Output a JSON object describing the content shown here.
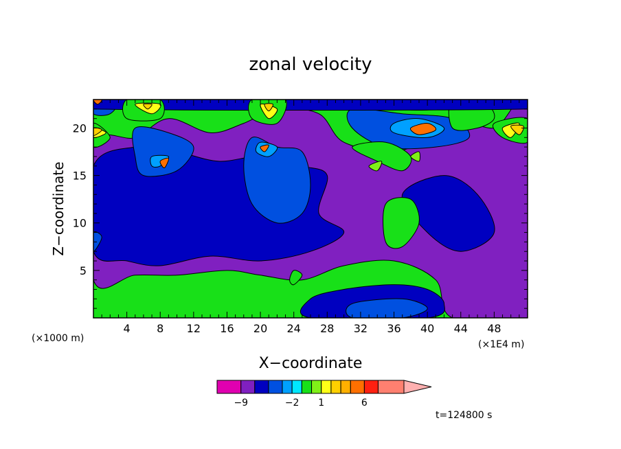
{
  "chart_data": {
    "type": "heatmap",
    "title": "zonal velocity",
    "xlabel": "X−coordinate",
    "ylabel": "Z−coordinate",
    "x_unit_left": "(×1000 m)",
    "x_unit_right": "(×1E4 m)",
    "xlim": [
      0,
      52
    ],
    "ylim": [
      0,
      23
    ],
    "x_ticks": [
      4,
      8,
      12,
      16,
      20,
      24,
      28,
      32,
      36,
      40,
      44,
      48
    ],
    "y_ticks": [
      5,
      10,
      15,
      20
    ],
    "time_label": "t=124800 s",
    "colorbar": {
      "tick_labels": [
        "−9",
        "−2",
        "1",
        "6"
      ],
      "tick_values": [
        -9,
        -2,
        1,
        6
      ],
      "levels": [
        -15,
        -9,
        -7,
        -5,
        -3,
        -2,
        -1,
        0,
        1,
        2,
        3,
        4,
        6,
        8,
        15
      ]
    },
    "colors": [
      "#e000b0",
      "#8020c0",
      "#0000c0",
      "#0050e0",
      "#00a0ff",
      "#00e8ff",
      "#18e018",
      "#80f018",
      "#ffff18",
      "#ffd000",
      "#ffb000",
      "#ff7000",
      "#ff2010",
      "#ff8070",
      "#ffb0b0"
    ],
    "regions": [
      {
        "level": 1,
        "points": [
          [
            0,
            18
          ],
          [
            5,
            19
          ],
          [
            9,
            21
          ],
          [
            14,
            19.5
          ],
          [
            18,
            20.5
          ],
          [
            22,
            22
          ],
          [
            27,
            21.5
          ],
          [
            30,
            18.5
          ],
          [
            36,
            17.5
          ],
          [
            40,
            19
          ],
          [
            43,
            21
          ],
          [
            48,
            20
          ],
          [
            52,
            22
          ],
          [
            52,
            0
          ],
          [
            43,
            0
          ],
          [
            41,
            4
          ],
          [
            36,
            6
          ],
          [
            30,
            5.5
          ],
          [
            25,
            4
          ],
          [
            20,
            4.5
          ],
          [
            16,
            5
          ],
          [
            10,
            4.5
          ],
          [
            5,
            4.5
          ],
          [
            0,
            4
          ]
        ]
      },
      {
        "level": 2,
        "points": [
          [
            0,
            16
          ],
          [
            5,
            18
          ],
          [
            10,
            17.5
          ],
          [
            15,
            16.5
          ],
          [
            20,
            17
          ],
          [
            25,
            16
          ],
          [
            28,
            15
          ],
          [
            27,
            11
          ],
          [
            30,
            9
          ],
          [
            26,
            7
          ],
          [
            20,
            6
          ],
          [
            14,
            6.5
          ],
          [
            8,
            5.5
          ],
          [
            4,
            6
          ],
          [
            0,
            7
          ]
        ]
      },
      {
        "level": 2,
        "points": [
          [
            37,
            13
          ],
          [
            42,
            15
          ],
          [
            46,
            13
          ],
          [
            48,
            9
          ],
          [
            44,
            7
          ],
          [
            40,
            9
          ]
        ]
      },
      {
        "level": 2,
        "points": [
          [
            26,
            2
          ],
          [
            30,
            3
          ],
          [
            36,
            3.5
          ],
          [
            40,
            3
          ],
          [
            42,
            1.5
          ],
          [
            40,
            0
          ],
          [
            26,
            0
          ]
        ]
      },
      {
        "level": 3,
        "points": [
          [
            19,
            19
          ],
          [
            22,
            18
          ],
          [
            25,
            17.5
          ],
          [
            26,
            14
          ],
          [
            25,
            11
          ],
          [
            22,
            10
          ],
          [
            19,
            12
          ],
          [
            18,
            16
          ]
        ]
      },
      {
        "level": 3,
        "points": [
          [
            5,
            20
          ],
          [
            9,
            19.5
          ],
          [
            12,
            18
          ],
          [
            10,
            15.5
          ],
          [
            6,
            15
          ],
          [
            5,
            17
          ]
        ]
      },
      {
        "level": 3,
        "points": [
          [
            31,
            22
          ],
          [
            37,
            21.5
          ],
          [
            43,
            21
          ],
          [
            45,
            19
          ],
          [
            41,
            18
          ],
          [
            35,
            18
          ],
          [
            31,
            20
          ]
        ]
      },
      {
        "level": 3,
        "points": [
          [
            0,
            23
          ],
          [
            3,
            23
          ],
          [
            2,
            21.5
          ],
          [
            0,
            21.5
          ]
        ]
      },
      {
        "level": 3,
        "points": [
          [
            31,
            1.5
          ],
          [
            37,
            2
          ],
          [
            40,
            1
          ],
          [
            37,
            0
          ],
          [
            31,
            0
          ]
        ]
      },
      {
        "level": 4,
        "points": [
          [
            36,
            20.5
          ],
          [
            39,
            21
          ],
          [
            42,
            20
          ],
          [
            40,
            19
          ],
          [
            36,
            19.5
          ]
        ]
      },
      {
        "level": 4,
        "points": [
          [
            20,
            18.5
          ],
          [
            22,
            18
          ],
          [
            21,
            17
          ],
          [
            19.5,
            17.5
          ]
        ]
      },
      {
        "level": 4,
        "points": [
          [
            7,
            17
          ],
          [
            9,
            17
          ],
          [
            8,
            16
          ],
          [
            7,
            16
          ]
        ]
      },
      {
        "level": 6,
        "points": [
          [
            31,
            18
          ],
          [
            34,
            16.5
          ],
          [
            37,
            15.5
          ],
          [
            38,
            17
          ],
          [
            35,
            18.5
          ]
        ]
      },
      {
        "level": 6,
        "points": [
          [
            35,
            12
          ],
          [
            38,
            12.5
          ],
          [
            39,
            10
          ],
          [
            37,
            7.5
          ],
          [
            35,
            8
          ]
        ]
      },
      {
        "level": 6,
        "points": [
          [
            43,
            23
          ],
          [
            47,
            22.5
          ],
          [
            48,
            21
          ],
          [
            46,
            20
          ],
          [
            43,
            20
          ]
        ]
      },
      {
        "level": 5,
        "points": [
          [
            36,
            23
          ],
          [
            42,
            23
          ],
          [
            41,
            22
          ],
          [
            37,
            22
          ]
        ]
      },
      {
        "level": 3,
        "points": [
          [
            0,
            9
          ],
          [
            1,
            8.5
          ],
          [
            0,
            7
          ]
        ]
      },
      {
        "level": 6,
        "points": [
          [
            24,
            5
          ],
          [
            25,
            4.5
          ],
          [
            24,
            3.5
          ],
          [
            23.5,
            4
          ]
        ]
      },
      {
        "level": 2,
        "points": [
          [
            0,
            23
          ],
          [
            52,
            23
          ],
          [
            52,
            22
          ],
          [
            0,
            22
          ]
        ]
      },
      {
        "level": 6,
        "points": [
          [
            0,
            20.5
          ],
          [
            2,
            19
          ],
          [
            0,
            18
          ]
        ]
      },
      {
        "level": 6,
        "points": [
          [
            48,
            20.5
          ],
          [
            52,
            21
          ],
          [
            52,
            18.5
          ],
          [
            49,
            19
          ]
        ]
      },
      {
        "level": 6,
        "points": [
          [
            4,
            23
          ],
          [
            8,
            23
          ],
          [
            8,
            21
          ],
          [
            4,
            21
          ]
        ]
      },
      {
        "level": 6,
        "points": [
          [
            19,
            23
          ],
          [
            23,
            23
          ],
          [
            22,
            20.5
          ],
          [
            19,
            21
          ]
        ]
      },
      {
        "level": 8,
        "points": [
          [
            0,
            20
          ],
          [
            1.5,
            19.5
          ],
          [
            0,
            19
          ]
        ]
      },
      {
        "level": 8,
        "points": [
          [
            49,
            20
          ],
          [
            51,
            20.5
          ],
          [
            50,
            19
          ]
        ]
      },
      {
        "level": 8,
        "points": [
          [
            5,
            22.5
          ],
          [
            8,
            22.5
          ],
          [
            7,
            21.5
          ]
        ]
      },
      {
        "level": 8,
        "points": [
          [
            20,
            22.5
          ],
          [
            22,
            22
          ],
          [
            21,
            21
          ]
        ]
      },
      {
        "level": 9,
        "points": [
          [
            6,
            22.5
          ],
          [
            7,
            22.5
          ],
          [
            6.5,
            22
          ]
        ]
      },
      {
        "level": 9,
        "points": [
          [
            20.5,
            22.5
          ],
          [
            21.5,
            22.5
          ],
          [
            21,
            21.8
          ]
        ]
      },
      {
        "level": 9,
        "points": [
          [
            0,
            20
          ],
          [
            1,
            19.8
          ],
          [
            0,
            19.2
          ]
        ]
      },
      {
        "level": 9,
        "points": [
          [
            50,
            20.2
          ],
          [
            51.5,
            20.2
          ],
          [
            51,
            19.3
          ]
        ]
      },
      {
        "level": 7,
        "points": [
          [
            33,
            16
          ],
          [
            34.5,
            16.5
          ],
          [
            34,
            15.5
          ]
        ]
      },
      {
        "level": 7,
        "points": [
          [
            38,
            17
          ],
          [
            39,
            17.5
          ],
          [
            39,
            16.5
          ]
        ]
      },
      {
        "level": 11,
        "points": [
          [
            38,
            20
          ],
          [
            40,
            20.5
          ],
          [
            41,
            19.8
          ],
          [
            39,
            19.3
          ]
        ]
      },
      {
        "level": 11,
        "points": [
          [
            0,
            23
          ],
          [
            1,
            23
          ],
          [
            0.5,
            22.5
          ]
        ]
      },
      {
        "level": 11,
        "points": [
          [
            8,
            16.5
          ],
          [
            9,
            16.8
          ],
          [
            8.5,
            15.8
          ]
        ]
      },
      {
        "level": 11,
        "points": [
          [
            20,
            18
          ],
          [
            21,
            18.2
          ],
          [
            20.5,
            17.5
          ]
        ]
      }
    ]
  }
}
